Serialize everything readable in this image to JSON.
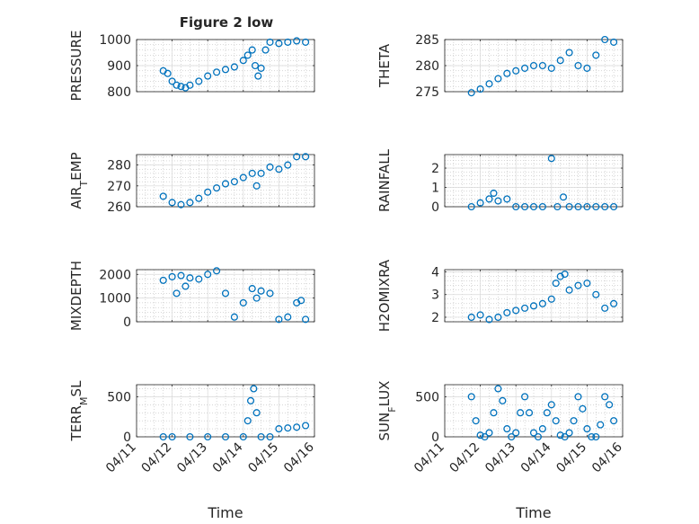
{
  "figure": {
    "title": "Figure 2 low",
    "marker_color": "#0072BD",
    "axis_color": "#262626",
    "grid_color": "#b0b0b0",
    "x_tick_labels": [
      "04/11",
      "04/12",
      "04/13",
      "04/14",
      "04/15",
      "04/16"
    ],
    "xlabel": "Time"
  },
  "chart_data": [
    {
      "type": "scatter",
      "ylabel": "PRESSURE",
      "ylim": [
        800,
        1000
      ],
      "yticks": [
        800,
        900,
        1000
      ],
      "xlim": [
        "2020-04-11",
        "2020-04-16"
      ],
      "grid": true,
      "x": [
        "04/11 18:00",
        "04/11 21:00",
        "04/12 00:00",
        "04/12 03:00",
        "04/12 06:00",
        "04/12 09:00",
        "04/12 12:00",
        "04/12 18:00",
        "04/13 00:00",
        "04/13 06:00",
        "04/13 12:00",
        "04/13 18:00",
        "04/14 00:00",
        "04/14 03:00",
        "04/14 06:00",
        "04/14 08:00",
        "04/14 10:00",
        "04/14 12:00",
        "04/14 15:00",
        "04/14 18:00",
        "04/15 00:00",
        "04/15 06:00",
        "04/15 12:00",
        "04/15 18:00"
      ],
      "y": [
        880,
        870,
        840,
        825,
        820,
        815,
        825,
        840,
        860,
        875,
        885,
        895,
        920,
        940,
        960,
        900,
        860,
        890,
        960,
        990,
        985,
        990,
        995,
        990
      ]
    },
    {
      "type": "scatter",
      "ylabel": "THETA",
      "ylim": [
        275,
        285
      ],
      "yticks": [
        275,
        280,
        285
      ],
      "xlim": [
        "2020-04-11",
        "2020-04-16"
      ],
      "grid": true,
      "x": [
        "04/11 18:00",
        "04/12 00:00",
        "04/12 06:00",
        "04/12 12:00",
        "04/12 18:00",
        "04/13 00:00",
        "04/13 06:00",
        "04/13 12:00",
        "04/13 18:00",
        "04/14 00:00",
        "04/14 06:00",
        "04/14 12:00",
        "04/14 18:00",
        "04/15 00:00",
        "04/15 06:00",
        "04/15 12:00",
        "04/15 18:00"
      ],
      "y": [
        274.8,
        275.5,
        276.5,
        277.5,
        278.5,
        279.0,
        279.5,
        280.0,
        280.0,
        279.5,
        281.0,
        282.5,
        280.0,
        279.5,
        282.0,
        285.0,
        284.5
      ]
    },
    {
      "type": "scatter",
      "ylabel": "AIR_TEMP",
      "ylim": [
        260,
        285
      ],
      "yticks": [
        260,
        270,
        280
      ],
      "xlim": [
        "2020-04-11",
        "2020-04-16"
      ],
      "grid": true,
      "x": [
        "04/11 18:00",
        "04/12 00:00",
        "04/12 06:00",
        "04/12 12:00",
        "04/12 18:00",
        "04/13 00:00",
        "04/13 06:00",
        "04/13 12:00",
        "04/13 18:00",
        "04/14 00:00",
        "04/14 06:00",
        "04/14 09:00",
        "04/14 12:00",
        "04/14 18:00",
        "04/15 00:00",
        "04/15 06:00",
        "04/15 12:00",
        "04/15 18:00"
      ],
      "y": [
        265,
        262,
        261,
        262,
        264,
        267,
        269,
        271,
        272,
        274,
        276,
        270,
        276,
        279,
        278,
        280,
        284,
        284
      ]
    },
    {
      "type": "scatter",
      "ylabel": "RAINFALL",
      "ylim": [
        0,
        2.7
      ],
      "yticks": [
        0,
        1,
        2
      ],
      "xlim": [
        "2020-04-11",
        "2020-04-16"
      ],
      "grid": true,
      "x": [
        "04/11 18:00",
        "04/12 00:00",
        "04/12 06:00",
        "04/12 09:00",
        "04/12 12:00",
        "04/12 18:00",
        "04/13 00:00",
        "04/13 06:00",
        "04/13 12:00",
        "04/13 18:00",
        "04/14 00:00",
        "04/14 04:00",
        "04/14 08:00",
        "04/14 12:00",
        "04/14 18:00",
        "04/15 00:00",
        "04/15 06:00",
        "04/15 12:00",
        "04/15 18:00"
      ],
      "y": [
        0,
        0.2,
        0.4,
        0.7,
        0.3,
        0.4,
        0,
        0,
        0,
        0,
        2.5,
        0,
        0.5,
        0,
        0,
        0,
        0,
        0,
        0
      ]
    },
    {
      "type": "scatter",
      "ylabel": "MIXDEPTH",
      "ylim": [
        0,
        2200
      ],
      "yticks": [
        0,
        1000,
        2000
      ],
      "xlim": [
        "2020-04-11",
        "2020-04-16"
      ],
      "grid": true,
      "x": [
        "04/11 18:00",
        "04/12 00:00",
        "04/12 03:00",
        "04/12 06:00",
        "04/12 09:00",
        "04/12 12:00",
        "04/12 18:00",
        "04/13 00:00",
        "04/13 06:00",
        "04/13 12:00",
        "04/13 18:00",
        "04/14 00:00",
        "04/14 06:00",
        "04/14 09:00",
        "04/14 12:00",
        "04/14 18:00",
        "04/15 00:00",
        "04/15 06:00",
        "04/15 12:00",
        "04/15 15:00",
        "04/15 18:00"
      ],
      "y": [
        1750,
        1900,
        1200,
        1950,
        1500,
        1850,
        1800,
        2000,
        2150,
        1200,
        200,
        800,
        1400,
        1000,
        1300,
        1200,
        100,
        200,
        800,
        900,
        100
      ]
    },
    {
      "type": "scatter",
      "ylabel": "H2OMIXRA",
      "ylim": [
        1.8,
        4.1
      ],
      "yticks": [
        2,
        3,
        4
      ],
      "xlim": [
        "2020-04-11",
        "2020-04-16"
      ],
      "grid": true,
      "x": [
        "04/11 18:00",
        "04/12 00:00",
        "04/12 06:00",
        "04/12 12:00",
        "04/12 18:00",
        "04/13 00:00",
        "04/13 06:00",
        "04/13 12:00",
        "04/13 18:00",
        "04/14 00:00",
        "04/14 03:00",
        "04/14 06:00",
        "04/14 09:00",
        "04/14 12:00",
        "04/14 18:00",
        "04/15 00:00",
        "04/15 06:00",
        "04/15 12:00",
        "04/15 18:00"
      ],
      "y": [
        2.0,
        2.1,
        1.9,
        2.0,
        2.2,
        2.3,
        2.4,
        2.5,
        2.6,
        2.8,
        3.5,
        3.8,
        3.9,
        3.2,
        3.4,
        3.5,
        3.0,
        2.4,
        2.6
      ]
    },
    {
      "type": "scatter",
      "ylabel": "TERR_MSL",
      "ylim": [
        0,
        650
      ],
      "yticks": [
        0,
        500
      ],
      "xlim": [
        "2020-04-11",
        "2020-04-16"
      ],
      "grid": true,
      "x": [
        "04/11 18:00",
        "04/12 00:00",
        "04/12 12:00",
        "04/13 00:00",
        "04/13 12:00",
        "04/14 00:00",
        "04/14 03:00",
        "04/14 05:00",
        "04/14 07:00",
        "04/14 09:00",
        "04/14 12:00",
        "04/14 18:00",
        "04/15 00:00",
        "04/15 06:00",
        "04/15 12:00",
        "04/15 18:00"
      ],
      "y": [
        0,
        0,
        0,
        0,
        0,
        0,
        200,
        450,
        600,
        300,
        0,
        0,
        100,
        110,
        120,
        140
      ]
    },
    {
      "type": "scatter",
      "ylabel": "SUN_FLUX",
      "ylim": [
        0,
        650
      ],
      "yticks": [
        0,
        500
      ],
      "xlim": [
        "2020-04-11",
        "2020-04-16"
      ],
      "grid": true,
      "x": [
        "04/11 18:00",
        "04/11 21:00",
        "04/12 00:00",
        "04/12 03:00",
        "04/12 06:00",
        "04/12 09:00",
        "04/12 12:00",
        "04/12 15:00",
        "04/12 18:00",
        "04/12 21:00",
        "04/13 00:00",
        "04/13 03:00",
        "04/13 06:00",
        "04/13 09:00",
        "04/13 12:00",
        "04/13 15:00",
        "04/13 18:00",
        "04/13 21:00",
        "04/14 00:00",
        "04/14 03:00",
        "04/14 06:00",
        "04/14 09:00",
        "04/14 12:00",
        "04/14 15:00",
        "04/14 18:00",
        "04/14 21:00",
        "04/15 00:00",
        "04/15 03:00",
        "04/15 06:00",
        "04/15 09:00",
        "04/15 12:00",
        "04/15 15:00",
        "04/15 18:00"
      ],
      "y": [
        500,
        200,
        20,
        0,
        50,
        300,
        600,
        450,
        100,
        0,
        50,
        300,
        500,
        300,
        50,
        0,
        100,
        300,
        400,
        200,
        20,
        0,
        50,
        200,
        500,
        350,
        100,
        0,
        0,
        150,
        500,
        400,
        200
      ]
    }
  ]
}
